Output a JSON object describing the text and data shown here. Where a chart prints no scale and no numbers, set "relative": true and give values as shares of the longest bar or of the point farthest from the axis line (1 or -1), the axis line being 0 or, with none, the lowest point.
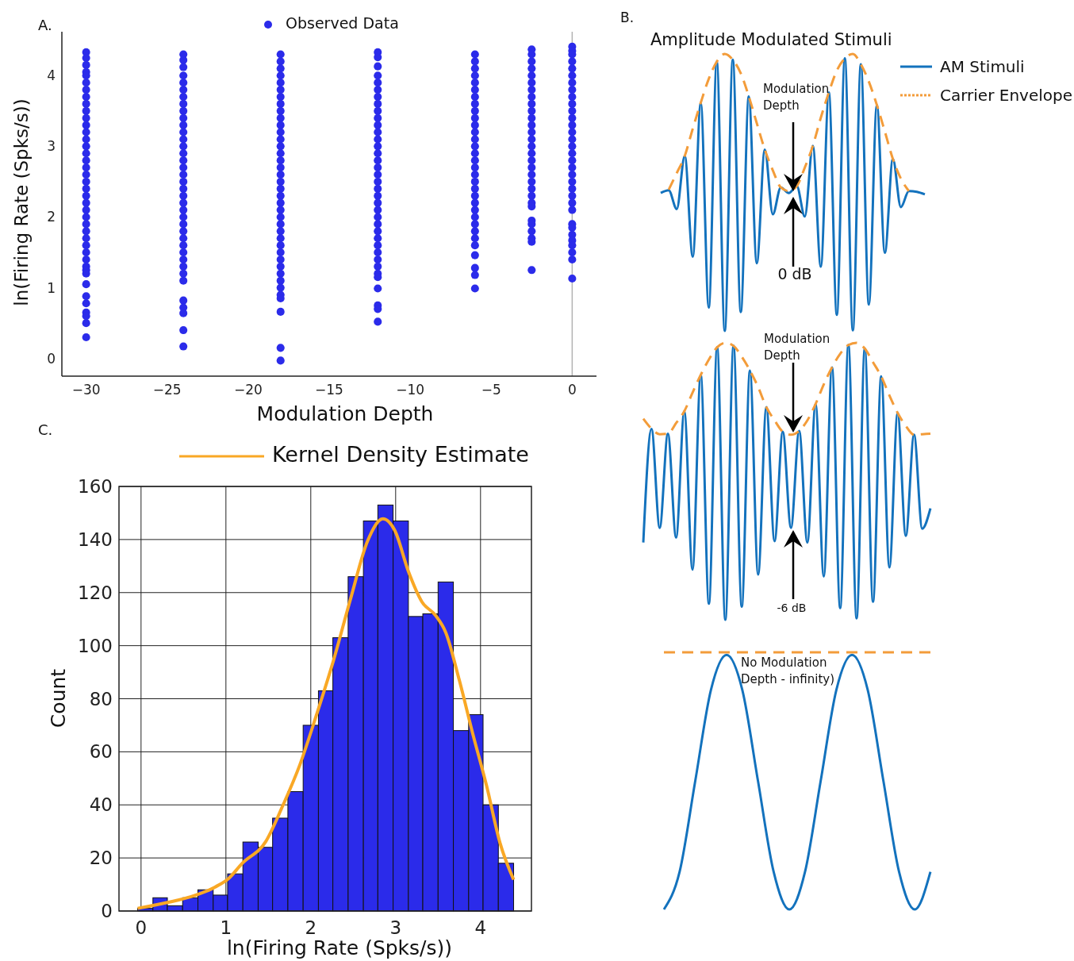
{
  "chart_data": [
    {
      "type": "scatter",
      "xlabel": "Modulation Depth",
      "ylabel": "ln(Firing Rate (Spks/s))",
      "annotations": [
        "A."
      ],
      "xlim": [
        -31.5,
        1.5
      ],
      "ylim": [
        -0.25,
        4.62
      ],
      "xticks": [
        {
          "value": -30,
          "label": "−30"
        },
        {
          "value": -25,
          "label": "−25"
        },
        {
          "value": -20,
          "label": "−20"
        },
        {
          "value": -15,
          "label": "−15"
        },
        {
          "value": -10,
          "label": "−10"
        },
        {
          "value": -5,
          "label": "−5"
        },
        0
      ],
      "yticks": [
        0,
        1,
        2,
        3,
        4
      ],
      "legend": "top",
      "marker": "circle",
      "ref_lines": [
        {
          "axis": "x",
          "value": 0,
          "color": "#b3b3b3"
        }
      ],
      "series": [
        {
          "name": "Observed Data",
          "color": "#2b2bea",
          "x": [
            -30,
            -30,
            -30,
            -30,
            -30,
            -30,
            -30,
            -30,
            -30,
            -30,
            -30,
            -30,
            -30,
            -30,
            -30,
            -30,
            -30,
            -30,
            -30,
            -30,
            -30,
            -30,
            -30,
            -30,
            -30,
            -30,
            -30,
            -30,
            -30,
            -30,
            -30,
            -30,
            -30,
            -30,
            -30,
            -30,
            -30,
            -30,
            -30,
            -30,
            -30,
            -24,
            -24,
            -24,
            -24,
            -24,
            -24,
            -24,
            -24,
            -24,
            -24,
            -24,
            -24,
            -24,
            -24,
            -24,
            -24,
            -24,
            -24,
            -24,
            -24,
            -24,
            -24,
            -24,
            -24,
            -24,
            -24,
            -24,
            -24,
            -24,
            -24,
            -24,
            -24,
            -24,
            -24,
            -24,
            -24,
            -24,
            -24,
            -18,
            -18,
            -18,
            -18,
            -18,
            -18,
            -18,
            -18,
            -18,
            -18,
            -18,
            -18,
            -18,
            -18,
            -18,
            -18,
            -18,
            -18,
            -18,
            -18,
            -18,
            -18,
            -18,
            -18,
            -18,
            -18,
            -18,
            -18,
            -18,
            -18,
            -18,
            -18,
            -18,
            -18,
            -18,
            -18,
            -18,
            -18,
            -18,
            -12,
            -12,
            -12,
            -12,
            -12,
            -12,
            -12,
            -12,
            -12,
            -12,
            -12,
            -12,
            -12,
            -12,
            -12,
            -12,
            -12,
            -12,
            -12,
            -12,
            -12,
            -12,
            -12,
            -12,
            -12,
            -12,
            -12,
            -12,
            -12,
            -12,
            -12,
            -12,
            -12,
            -12,
            -12,
            -12,
            -12,
            -6,
            -6,
            -6,
            -6,
            -6,
            -6,
            -6,
            -6,
            -6,
            -6,
            -6,
            -6,
            -6,
            -6,
            -6,
            -6,
            -6,
            -6,
            -6,
            -6,
            -6,
            -6,
            -6,
            -6,
            -6,
            -6,
            -6,
            -6,
            -6,
            -6,
            -6,
            -6,
            -2.5,
            -2.5,
            -2.5,
            -2.5,
            -2.5,
            -2.5,
            -2.5,
            -2.5,
            -2.5,
            -2.5,
            -2.5,
            -2.5,
            -2.5,
            -2.5,
            -2.5,
            -2.5,
            -2.5,
            -2.5,
            -2.5,
            -2.5,
            -2.5,
            -2.5,
            -2.5,
            -2.5,
            -2.5,
            -2.5,
            -2.5,
            -2.5,
            -2.5,
            -2.5,
            0,
            0,
            0,
            0,
            0,
            0,
            0,
            0,
            0,
            0,
            0,
            0,
            0,
            0,
            0,
            0,
            0,
            0,
            0,
            0,
            0,
            0,
            0,
            0,
            0,
            0,
            0,
            0,
            0,
            0,
            0,
            0,
            0
          ],
          "values": [
            4.33,
            4.25,
            4.15,
            4.05,
            4.0,
            3.9,
            3.8,
            3.7,
            3.6,
            3.5,
            3.4,
            3.3,
            3.2,
            3.1,
            3.0,
            2.9,
            2.8,
            2.7,
            2.6,
            2.5,
            2.4,
            2.3,
            2.2,
            2.1,
            2.0,
            1.9,
            1.8,
            1.7,
            1.6,
            1.5,
            1.4,
            1.3,
            1.25,
            1.2,
            1.05,
            0.88,
            0.78,
            0.65,
            0.6,
            0.5,
            0.3,
            4.3,
            4.22,
            4.12,
            4.0,
            3.9,
            3.8,
            3.7,
            3.6,
            3.5,
            3.4,
            3.3,
            3.2,
            3.1,
            3.0,
            2.9,
            2.8,
            2.7,
            2.6,
            2.5,
            2.4,
            2.3,
            2.2,
            2.1,
            2.0,
            1.9,
            1.8,
            1.7,
            1.6,
            1.5,
            1.4,
            1.3,
            1.2,
            1.1,
            0.82,
            0.72,
            0.64,
            0.4,
            0.17,
            4.3,
            4.2,
            4.1,
            4.0,
            3.9,
            3.8,
            3.7,
            3.6,
            3.5,
            3.4,
            3.3,
            3.2,
            3.1,
            3.0,
            2.9,
            2.8,
            2.7,
            2.6,
            2.5,
            2.4,
            2.3,
            2.2,
            2.1,
            2.0,
            1.9,
            1.8,
            1.7,
            1.6,
            1.5,
            1.4,
            1.3,
            1.2,
            1.1,
            1.0,
            0.9,
            0.85,
            0.66,
            0.15,
            -0.03,
            4.33,
            4.26,
            4.13,
            4.0,
            3.9,
            3.8,
            3.7,
            3.6,
            3.5,
            3.4,
            3.3,
            3.2,
            3.1,
            3.0,
            2.9,
            2.8,
            2.7,
            2.6,
            2.5,
            2.4,
            2.3,
            2.2,
            2.1,
            2.0,
            1.9,
            1.8,
            1.7,
            1.6,
            1.5,
            1.4,
            1.3,
            1.2,
            1.15,
            0.99,
            0.75,
            0.7,
            0.52,
            4.3,
            4.2,
            4.1,
            4.0,
            3.9,
            3.8,
            3.7,
            3.6,
            3.5,
            3.4,
            3.3,
            3.2,
            3.1,
            3.0,
            2.9,
            2.8,
            2.7,
            2.6,
            2.5,
            2.4,
            2.3,
            2.2,
            2.1,
            2.0,
            1.9,
            1.8,
            1.7,
            1.6,
            1.46,
            1.28,
            1.18,
            0.99,
            4.37,
            4.3,
            4.2,
            4.1,
            4.0,
            3.9,
            3.8,
            3.7,
            3.6,
            3.5,
            3.4,
            3.3,
            3.2,
            3.1,
            3.0,
            2.9,
            2.8,
            2.7,
            2.6,
            2.5,
            2.4,
            2.3,
            2.2,
            2.15,
            1.95,
            1.9,
            1.8,
            1.7,
            1.65,
            1.25,
            4.41,
            4.35,
            4.3,
            4.2,
            4.1,
            4.0,
            3.9,
            3.8,
            3.7,
            3.6,
            3.5,
            3.4,
            3.3,
            3.2,
            3.1,
            3.0,
            2.9,
            2.8,
            2.7,
            2.6,
            2.5,
            2.4,
            2.3,
            2.2,
            2.1,
            1.9,
            1.85,
            1.75,
            1.67,
            1.6,
            1.5,
            1.4,
            1.13
          ]
        }
      ]
    },
    {
      "type": "line",
      "relative": true,
      "title": "Amplitude Modulated Stimuli",
      "annotations": [
        "B.",
        "Modulation Depth",
        "0 dB"
      ],
      "legend": "right",
      "categories": [
        null,
        null,
        null,
        null,
        null,
        null,
        null,
        null,
        null,
        null,
        null,
        null,
        null,
        null,
        null,
        null,
        null,
        null,
        null,
        null,
        null,
        null,
        null,
        null,
        null,
        null,
        null,
        null,
        null,
        null,
        null,
        null,
        null,
        null
      ],
      "series": [
        {
          "name": "AM Stimuli",
          "color": "#1372bd",
          "line_style": "solid",
          "values": [
            0.498,
            0.508,
            0.44,
            0.632,
            0.268,
            0.824,
            0.084,
            0.972,
            0,
            0.979,
            0.068,
            0.847,
            0.244,
            0.655,
            0.421,
            0.518,
            0.498,
            0.523,
            0.413,
            0.668,
            0.232,
            0.861,
            0.058,
            0.984,
            0.002,
            0.963,
            0.095,
            0.816,
            0.282,
            0.621,
            0.447,
            0.505,
            0.502,
            0.493
          ]
        },
        {
          "name": "Carrier Envelope",
          "color": "#f39c3a",
          "line_style": "dashed",
          "values": [
            null,
            0.51,
            0.57,
            0.632,
            0.73,
            0.824,
            0.91,
            0.972,
            1,
            0.979,
            0.93,
            0.847,
            0.75,
            0.655,
            0.58,
            0.518,
            0.505,
            0.523,
            0.59,
            0.668,
            0.77,
            0.861,
            0.94,
            0.984,
            1,
            0.963,
            0.9,
            0.816,
            0.72,
            0.621,
            0.55,
            0.505,
            null,
            null
          ]
        }
      ]
    },
    {
      "type": "line",
      "relative": true,
      "annotations": [
        "Modulation Depth",
        "-6 dB"
      ],
      "categories": [
        null,
        null,
        null,
        null,
        null,
        null,
        null,
        null,
        null,
        null,
        null,
        null,
        null,
        null,
        null,
        null,
        null,
        null,
        null,
        null,
        null,
        null,
        null,
        null,
        null,
        null,
        null,
        null,
        null,
        null,
        null,
        null,
        null,
        null,
        null,
        null
      ],
      "series": [
        {
          "color": "#1372bd",
          "line_style": "solid",
          "values": [
            0.279,
            0.689,
            0.332,
            0.672,
            0.297,
            0.753,
            0.181,
            0.884,
            0.058,
            0.984,
            0,
            0.989,
            0.047,
            0.9,
            0.163,
            0.768,
            0.284,
            0.679,
            0.332,
            0.682,
            0.279,
            0.779,
            0.156,
            0.911,
            0.042,
            0.992,
            0.005,
            0.979,
            0.065,
            0.879,
            0.189,
            0.747,
            0.303,
            0.668,
            0.329,
            0.402
          ]
        },
        {
          "color": "#f39c3a",
          "line_style": "dashed",
          "values": [
            0.726,
            0.69,
            0.67,
            0.672,
            0.71,
            0.753,
            0.82,
            0.884,
            0.94,
            0.984,
            1,
            0.989,
            0.95,
            0.9,
            0.84,
            0.768,
            0.72,
            0.679,
            0.668,
            0.682,
            0.72,
            0.779,
            0.85,
            0.911,
            0.96,
            0.992,
            1,
            0.979,
            0.93,
            0.879,
            0.81,
            0.747,
            0.7,
            0.668,
            0.67,
            0.672
          ]
        }
      ]
    },
    {
      "type": "line",
      "relative": true,
      "annotations": [
        "No Modulation Depth - infinity)"
      ],
      "categories": [
        null,
        null,
        null,
        null,
        null,
        null,
        null,
        null,
        null,
        null,
        null,
        null,
        null,
        null,
        null,
        null,
        null,
        null
      ],
      "series": [
        {
          "color": "#1372bd",
          "line_style": "solid",
          "values": [
            0,
            0.146,
            0.5,
            0.854,
            0.99,
            0.854,
            0.5,
            0.146,
            0,
            0.146,
            0.5,
            0.854,
            0.99,
            0.854,
            0.5,
            0.146,
            0,
            0.146
          ]
        },
        {
          "color": "#f39c3a",
          "line_style": "dashed",
          "values": [
            1,
            1,
            1,
            1,
            1,
            1,
            1,
            1,
            1,
            1,
            1,
            1,
            1,
            1,
            1,
            1,
            1,
            1
          ]
        }
      ]
    },
    {
      "type": "histogram",
      "xlabel": "ln(Firing Rate (Spks/s))",
      "ylabel": "Count",
      "annotations": [
        "C."
      ],
      "xlim": [
        -0.26,
        4.6
      ],
      "ylim": [
        0,
        160
      ],
      "xticks": [
        0,
        1,
        2,
        3,
        4
      ],
      "yticks": [
        0,
        20,
        40,
        60,
        80,
        100,
        120,
        140,
        160
      ],
      "grid": true,
      "legend": "top right",
      "bins": [
        -0.04,
        0.14,
        0.31,
        0.49,
        0.67,
        0.85,
        1.02,
        1.2,
        1.38,
        1.55,
        1.73,
        1.91,
        2.09,
        2.26,
        2.44,
        2.62,
        2.79,
        2.97,
        3.15,
        3.32,
        3.5,
        3.68,
        3.86,
        4.03,
        4.21,
        4.39
      ],
      "values": [
        1,
        5,
        2,
        5,
        8,
        6,
        14,
        26,
        24,
        35,
        45,
        70,
        83,
        103,
        126,
        147,
        153,
        147,
        111,
        112,
        124,
        68,
        74,
        40,
        18
      ],
      "color": "#2b2bea",
      "series": [
        {
          "type": "line",
          "name": "Kernel Density Estimate",
          "color": "#f9a825",
          "x": [
            -0.04,
            0.31,
            0.59,
            0.87,
            1.03,
            1.19,
            1.47,
            1.67,
            1.87,
            2.07,
            2.27,
            2.47,
            2.67,
            2.85,
            2.99,
            3.15,
            3.31,
            3.47,
            3.59,
            3.75,
            3.91,
            4.07,
            4.23,
            4.39
          ],
          "values": [
            1.0,
            3.2,
            5.4,
            9.0,
            12.2,
            17.9,
            26.2,
            39.7,
            55.0,
            74.2,
            94.7,
            117.8,
            139.5,
            147.8,
            143.4,
            128.0,
            116.5,
            111.4,
            105.0,
            87.0,
            66.6,
            47.4,
            25.6,
            11.8
          ]
        }
      ]
    }
  ]
}
